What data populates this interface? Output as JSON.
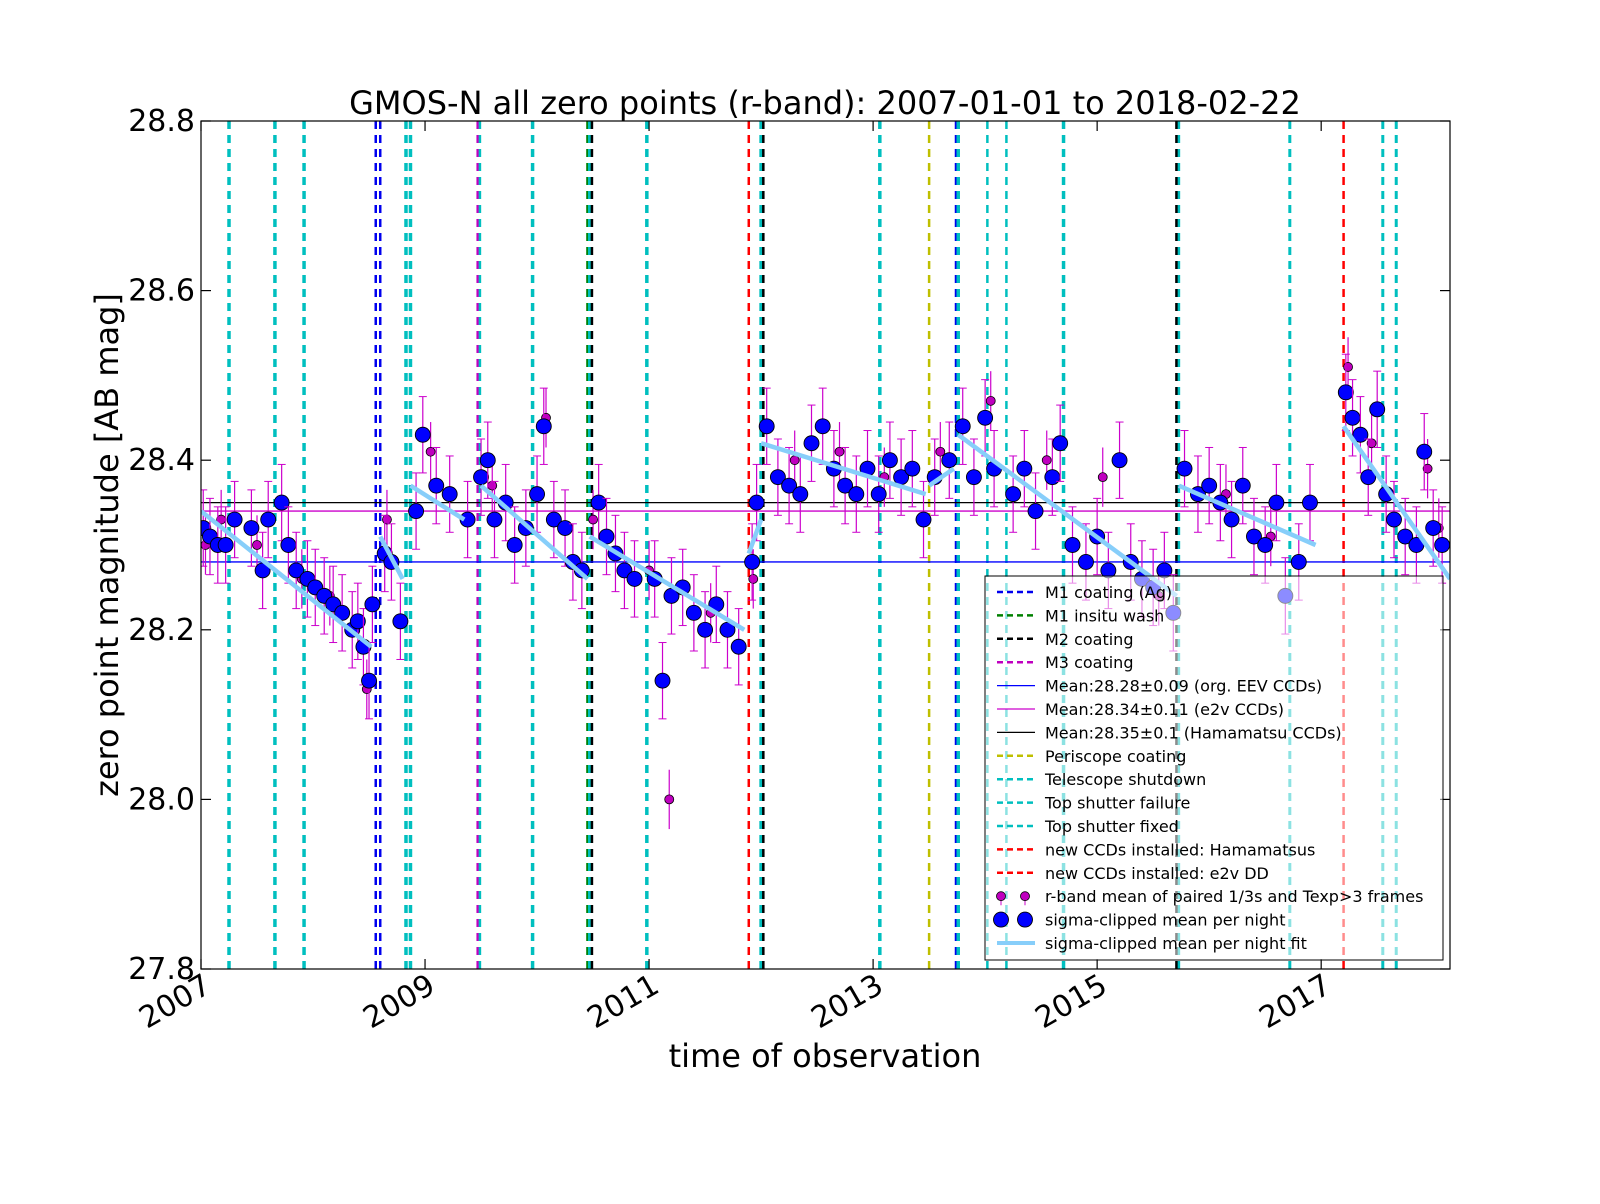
{
  "chart_data": {
    "type": "scatter",
    "title": "GMOS-N all zero points (r-band): 2007-01-01 to 2018-02-22",
    "xlabel": "time of observation",
    "ylabel": "zero point magnitude [AB mag]",
    "xlim": [
      2007.0,
      2018.15
    ],
    "ylim": [
      27.8,
      28.8
    ],
    "x_ticks": [
      {
        "value": 2007,
        "label": "2007"
      },
      {
        "value": 2009,
        "label": "2009"
      },
      {
        "value": 2011,
        "label": "2011"
      },
      {
        "value": 2013,
        "label": "2013"
      },
      {
        "value": 2015,
        "label": "2015"
      },
      {
        "value": 2017,
        "label": "2017"
      }
    ],
    "y_ticks": [
      {
        "value": 27.8,
        "label": "27.8"
      },
      {
        "value": 28.0,
        "label": "28.0"
      },
      {
        "value": 28.2,
        "label": "28.2"
      },
      {
        "value": 28.4,
        "label": "28.4"
      },
      {
        "value": 28.6,
        "label": "28.6"
      },
      {
        "value": 28.8,
        "label": "28.8"
      }
    ],
    "grid": false,
    "legend_position": "lower-right",
    "legend": [
      {
        "label": "M1 coating (Ag)",
        "style": "dashed",
        "color": "#0000ee"
      },
      {
        "label": "M1 insitu wash",
        "style": "dashed",
        "color": "#008000"
      },
      {
        "label": "M2 coating",
        "style": "dashed",
        "color": "#000000"
      },
      {
        "label": "M3 coating",
        "style": "dashed",
        "color": "#bf00bf"
      },
      {
        "label": "Mean:28.28±0.09 (org. EEV CCDs)",
        "style": "solid",
        "color": "#0000ff"
      },
      {
        "label": "Mean:28.34±0.11 (e2v CCDs)",
        "style": "solid",
        "color": "#cc00cc"
      },
      {
        "label": "Mean:28.35±0.1 (Hamamatsu CCDs)",
        "style": "solid",
        "color": "#000000"
      },
      {
        "label": "Periscope coating",
        "style": "dashed",
        "color": "#bfbf00"
      },
      {
        "label": "Telescope shutdown",
        "style": "dashed",
        "color": "#00bfbf"
      },
      {
        "label": "Top shutter failure",
        "style": "dashed",
        "color": "#00bfbf"
      },
      {
        "label": "Top shutter fixed",
        "style": "dashed",
        "color": "#00bfbf"
      },
      {
        "label": "new CCDs installed: Hamamatsus",
        "style": "dashed",
        "color": "#ff0000"
      },
      {
        "label": "new CCDs installed: e2v DD",
        "style": "dashed",
        "color": "#ff0000"
      },
      {
        "label": "r-band mean of paired 1/3s and Texp>3 frames",
        "style": "small-marker",
        "color": "#bf00bf"
      },
      {
        "label": "sigma-clipped mean per night",
        "style": "big-marker",
        "color": "#0000ff"
      },
      {
        "label": "sigma-clipped mean per night fit",
        "style": "fit-line",
        "color": "#87cefa"
      }
    ],
    "event_lines": [
      {
        "x": 2007.25,
        "color": "#00bfbf",
        "width": 3.5
      },
      {
        "x": 2007.66,
        "color": "#00bfbf",
        "width": 3.5
      },
      {
        "x": 2007.92,
        "color": "#00bfbf",
        "width": 3.5
      },
      {
        "x": 2008.56,
        "color": "#0000ee",
        "width": 2.5
      },
      {
        "x": 2008.6,
        "color": "#0000ee",
        "width": 2.5
      },
      {
        "x": 2008.83,
        "color": "#00bfbf",
        "width": 3.5
      },
      {
        "x": 2008.87,
        "color": "#00bfbf",
        "width": 3.5
      },
      {
        "x": 2009.47,
        "color": "#bf00bf",
        "width": 2.5
      },
      {
        "x": 2009.49,
        "color": "#00bfbf",
        "width": 2.5
      },
      {
        "x": 2009.96,
        "color": "#00bfbf",
        "width": 3.5
      },
      {
        "x": 2010.45,
        "color": "#008000",
        "width": 2.5
      },
      {
        "x": 2010.47,
        "color": "#00bfbf",
        "width": 3.5
      },
      {
        "x": 2010.49,
        "color": "#000000",
        "width": 2.5
      },
      {
        "x": 2010.98,
        "color": "#00bfbf",
        "width": 3.5
      },
      {
        "x": 2011.89,
        "color": "#ff0000",
        "width": 2.5
      },
      {
        "x": 2012.0,
        "color": "#00bfbf",
        "width": 3.5
      },
      {
        "x": 2012.02,
        "color": "#000000",
        "width": 2.5
      },
      {
        "x": 2013.06,
        "color": "#00bfbf",
        "width": 3.5
      },
      {
        "x": 2013.5,
        "color": "#bfbf00",
        "width": 2.5
      },
      {
        "x": 2013.74,
        "color": "#0000ee",
        "width": 2.5
      },
      {
        "x": 2013.76,
        "color": "#00bfbf",
        "width": 3.5
      },
      {
        "x": 2014.02,
        "color": "#00bfbf",
        "width": 2.5
      },
      {
        "x": 2014.19,
        "color": "#00bfbf",
        "width": 2.5
      },
      {
        "x": 2014.7,
        "color": "#00bfbf",
        "width": 3.5
      },
      {
        "x": 2015.71,
        "color": "#000000",
        "width": 3
      },
      {
        "x": 2015.73,
        "color": "#00bfbf",
        "width": 2.5
      },
      {
        "x": 2016.72,
        "color": "#00bfbf",
        "width": 3
      },
      {
        "x": 2017.2,
        "color": "#ff0000",
        "width": 2.5
      },
      {
        "x": 2017.55,
        "color": "#00bfbf",
        "width": 3
      },
      {
        "x": 2017.67,
        "color": "#00bfbf",
        "width": 3
      }
    ],
    "mean_lines": [
      {
        "y": 28.28,
        "color": "#0000ff"
      },
      {
        "y": 28.34,
        "color": "#cc00cc"
      },
      {
        "y": 28.35,
        "color": "#000000"
      }
    ],
    "fit_segments": [
      {
        "x": [
          2007.0,
          2008.52
        ],
        "y": [
          28.34,
          28.18
        ]
      },
      {
        "x": [
          2008.6,
          2008.8
        ],
        "y": [
          28.31,
          28.26
        ]
      },
      {
        "x": [
          2008.87,
          2009.35
        ],
        "y": [
          28.37,
          28.33
        ]
      },
      {
        "x": [
          2009.5,
          2010.45
        ],
        "y": [
          28.37,
          28.26
        ]
      },
      {
        "x": [
          2010.47,
          2011.85
        ],
        "y": [
          28.31,
          28.2
        ]
      },
      {
        "x": [
          2011.89,
          2012.0
        ],
        "y": [
          28.29,
          28.33
        ]
      },
      {
        "x": [
          2012.0,
          2013.47
        ],
        "y": [
          28.42,
          28.36
        ]
      },
      {
        "x": [
          2013.5,
          2013.72
        ],
        "y": [
          28.37,
          28.39
        ]
      },
      {
        "x": [
          2013.76,
          2015.71
        ],
        "y": [
          28.43,
          28.24
        ]
      },
      {
        "x": [
          2015.73,
          2016.95
        ],
        "y": [
          28.37,
          28.3
        ]
      },
      {
        "x": [
          2017.2,
          2018.15
        ],
        "y": [
          28.44,
          28.26
        ]
      }
    ],
    "series": [
      {
        "name": "sigma-clipped mean per night",
        "color": "#0000ff",
        "points": [
          [
            2007.02,
            28.32
          ],
          [
            2007.08,
            28.31
          ],
          [
            2007.15,
            28.3
          ],
          [
            2007.22,
            28.3
          ],
          [
            2007.3,
            28.33
          ],
          [
            2007.45,
            28.32
          ],
          [
            2007.55,
            28.27
          ],
          [
            2007.6,
            28.33
          ],
          [
            2007.72,
            28.35
          ],
          [
            2007.78,
            28.3
          ],
          [
            2007.85,
            28.27
          ],
          [
            2007.95,
            28.26
          ],
          [
            2008.02,
            28.25
          ],
          [
            2008.1,
            28.24
          ],
          [
            2008.18,
            28.23
          ],
          [
            2008.26,
            28.22
          ],
          [
            2008.35,
            28.2
          ],
          [
            2008.4,
            28.21
          ],
          [
            2008.45,
            28.18
          ],
          [
            2008.5,
            28.14
          ],
          [
            2008.53,
            28.23
          ],
          [
            2008.64,
            28.29
          ],
          [
            2008.7,
            28.28
          ],
          [
            2008.78,
            28.21
          ],
          [
            2008.92,
            28.34
          ],
          [
            2008.98,
            28.43
          ],
          [
            2009.1,
            28.37
          ],
          [
            2009.22,
            28.36
          ],
          [
            2009.38,
            28.33
          ],
          [
            2009.5,
            28.38
          ],
          [
            2009.56,
            28.4
          ],
          [
            2009.62,
            28.33
          ],
          [
            2009.72,
            28.35
          ],
          [
            2009.8,
            28.3
          ],
          [
            2009.9,
            28.32
          ],
          [
            2010.0,
            28.36
          ],
          [
            2010.06,
            28.44
          ],
          [
            2010.15,
            28.33
          ],
          [
            2010.25,
            28.32
          ],
          [
            2010.32,
            28.28
          ],
          [
            2010.4,
            28.27
          ],
          [
            2010.55,
            28.35
          ],
          [
            2010.62,
            28.31
          ],
          [
            2010.7,
            28.29
          ],
          [
            2010.78,
            28.27
          ],
          [
            2010.87,
            28.26
          ],
          [
            2011.05,
            28.26
          ],
          [
            2011.12,
            28.14
          ],
          [
            2011.2,
            28.24
          ],
          [
            2011.3,
            28.25
          ],
          [
            2011.4,
            28.22
          ],
          [
            2011.5,
            28.2
          ],
          [
            2011.6,
            28.23
          ],
          [
            2011.7,
            28.2
          ],
          [
            2011.8,
            28.18
          ],
          [
            2011.92,
            28.28
          ],
          [
            2011.96,
            28.35
          ],
          [
            2012.05,
            28.44
          ],
          [
            2012.15,
            28.38
          ],
          [
            2012.25,
            28.37
          ],
          [
            2012.35,
            28.36
          ],
          [
            2012.45,
            28.42
          ],
          [
            2012.55,
            28.44
          ],
          [
            2012.65,
            28.39
          ],
          [
            2012.75,
            28.37
          ],
          [
            2012.85,
            28.36
          ],
          [
            2012.95,
            28.39
          ],
          [
            2013.05,
            28.36
          ],
          [
            2013.15,
            28.4
          ],
          [
            2013.25,
            28.38
          ],
          [
            2013.35,
            28.39
          ],
          [
            2013.45,
            28.33
          ],
          [
            2013.55,
            28.38
          ],
          [
            2013.68,
            28.4
          ],
          [
            2013.8,
            28.44
          ],
          [
            2013.9,
            28.38
          ],
          [
            2014.0,
            28.45
          ],
          [
            2014.08,
            28.39
          ],
          [
            2014.25,
            28.36
          ],
          [
            2014.35,
            28.39
          ],
          [
            2014.45,
            28.34
          ],
          [
            2014.6,
            28.38
          ],
          [
            2014.67,
            28.42
          ],
          [
            2014.78,
            28.3
          ],
          [
            2014.9,
            28.28
          ],
          [
            2015.0,
            28.31
          ],
          [
            2015.1,
            28.27
          ],
          [
            2015.2,
            28.4
          ],
          [
            2015.3,
            28.28
          ],
          [
            2015.4,
            28.26
          ],
          [
            2015.5,
            28.25
          ],
          [
            2015.6,
            28.27
          ],
          [
            2015.68,
            28.22
          ],
          [
            2015.78,
            28.39
          ],
          [
            2015.9,
            28.36
          ],
          [
            2016.0,
            28.37
          ],
          [
            2016.1,
            28.35
          ],
          [
            2016.2,
            28.33
          ],
          [
            2016.3,
            28.37
          ],
          [
            2016.4,
            28.31
          ],
          [
            2016.5,
            28.3
          ],
          [
            2016.6,
            28.35
          ],
          [
            2016.68,
            28.24
          ],
          [
            2016.8,
            28.28
          ],
          [
            2016.9,
            28.35
          ],
          [
            2017.22,
            28.48
          ],
          [
            2017.28,
            28.45
          ],
          [
            2017.35,
            28.43
          ],
          [
            2017.42,
            28.38
          ],
          [
            2017.5,
            28.46
          ],
          [
            2017.58,
            28.36
          ],
          [
            2017.65,
            28.33
          ],
          [
            2017.75,
            28.31
          ],
          [
            2017.85,
            28.3
          ],
          [
            2017.92,
            28.41
          ],
          [
            2018.0,
            28.32
          ],
          [
            2018.08,
            28.3
          ]
        ]
      },
      {
        "name": "r-band mean of paired 1/3s and Texp>3 frames",
        "color": "#bf00bf",
        "points": [
          [
            2007.04,
            28.3
          ],
          [
            2007.18,
            28.33
          ],
          [
            2007.5,
            28.3
          ],
          [
            2007.9,
            28.26
          ],
          [
            2008.15,
            28.24
          ],
          [
            2008.48,
            28.13
          ],
          [
            2008.66,
            28.33
          ],
          [
            2009.05,
            28.41
          ],
          [
            2009.6,
            28.37
          ],
          [
            2010.08,
            28.45
          ],
          [
            2010.5,
            28.33
          ],
          [
            2011.0,
            28.27
          ],
          [
            2011.18,
            28.0
          ],
          [
            2011.55,
            28.22
          ],
          [
            2011.93,
            28.26
          ],
          [
            2012.3,
            28.4
          ],
          [
            2012.7,
            28.41
          ],
          [
            2013.1,
            28.38
          ],
          [
            2013.6,
            28.41
          ],
          [
            2014.05,
            28.47
          ],
          [
            2014.55,
            28.4
          ],
          [
            2015.05,
            28.38
          ],
          [
            2015.55,
            28.24
          ],
          [
            2016.15,
            28.36
          ],
          [
            2016.55,
            28.31
          ],
          [
            2017.24,
            28.51
          ],
          [
            2017.45,
            28.42
          ],
          [
            2017.95,
            28.39
          ],
          [
            2018.05,
            28.32
          ]
        ]
      }
    ]
  }
}
